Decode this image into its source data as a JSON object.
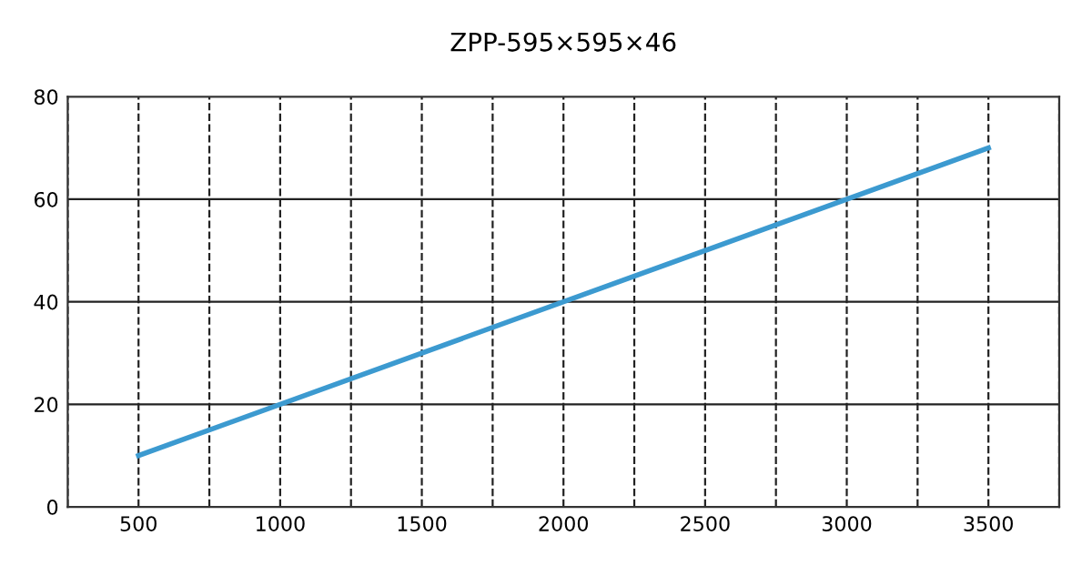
{
  "chart_data": {
    "type": "line",
    "title": "ZPP-595×595×46",
    "x": [
      500,
      3500
    ],
    "series": [
      {
        "color": "#3c9ad0",
        "values": [
          10,
          70
        ]
      }
    ],
    "xlim": [
      250,
      3750
    ],
    "ylim": [
      0,
      80
    ],
    "xticks": [
      {
        "value": 250,
        "label": null
      },
      500,
      {
        "value": 750,
        "label": null
      },
      1000,
      {
        "value": 1250,
        "label": null
      },
      1500,
      {
        "value": 1750,
        "label": null
      },
      2000,
      {
        "value": 2250,
        "label": null
      },
      2500,
      {
        "value": 2750,
        "label": null
      },
      3000,
      {
        "value": 3250,
        "label": null
      },
      3500,
      {
        "value": 3750,
        "label": null
      }
    ],
    "yticks": [
      0,
      20,
      40,
      60,
      80
    ],
    "grid": true,
    "legend": false,
    "marker": "none",
    "line_style": "solid"
  }
}
